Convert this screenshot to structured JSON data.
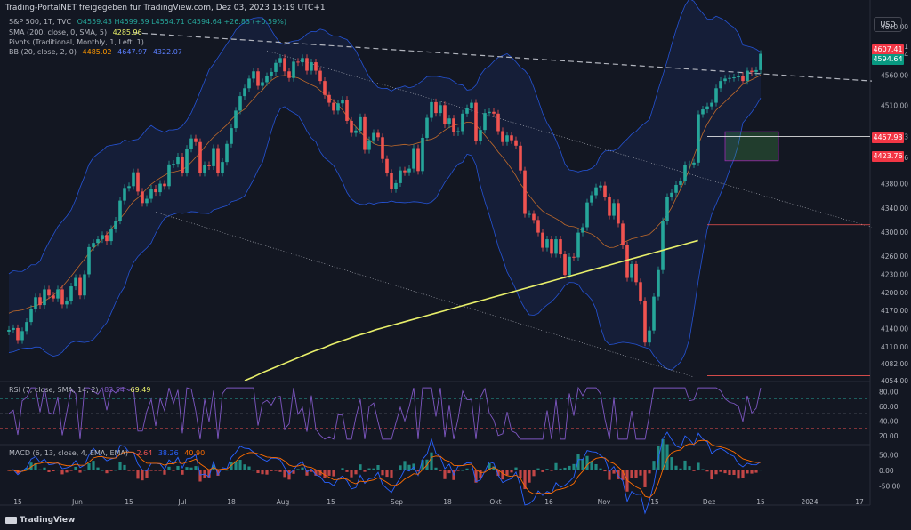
{
  "header": {
    "title": "Trading-PortalNET freigegeben für TradingView.com, Dez 03, 2023 15:19 UTC+1"
  },
  "legend": {
    "symbol": "S&P 500, 1T, TVC",
    "ohlc": "O4559.43  H4599.39  L4554.71  C4594.64  +26.83 (+0.59%)",
    "sma_label": "SMA (200, close, 0, SMA, 5)",
    "sma_value": "4285.96",
    "pivots_label": "Pivots (Traditional, Monthly, 1, Left, 1)",
    "bb_label": "BB (20, close, 2, 0)",
    "bb_basis": "4485.02",
    "bb_upper": "4647.97",
    "bb_lower": "4322.07",
    "rsi_label": "RSI (7, close, SMA, 14, 2)",
    "rsi_value": "83.54",
    "rsi_ma": "69.49",
    "macd_label": "MACD (6, 13, close, 4, EMA, EMA)",
    "macd_hist": "-2.64",
    "macd_line": "38.26",
    "macd_signal": "40.90"
  },
  "currency_button": "USD",
  "price_labels": {
    "upper_band": "4607.41",
    "last_price": "4594.64",
    "pivot_r": "4457.93",
    "pivot_s": "4423.76"
  },
  "branding": "TradingView",
  "colors": {
    "up": "#26a69a",
    "down": "#ef5350",
    "sma200": "#e8ef6a",
    "bb_band": "#2962ff",
    "bb_basis": "#c06a2a",
    "rsi": "#7e57c2",
    "macd_line": "#2962ff",
    "macd_signal": "#ff6d00"
  },
  "chart_data": {
    "type": "candlestick",
    "title": "S&P 500, 1T, TVC",
    "x_ticks": [
      "15",
      "Jun",
      "15",
      "Jul",
      "18",
      "Aug",
      "15",
      "Sep",
      "18",
      "Okt",
      "16",
      "Nov",
      "15",
      "Dez",
      "15",
      "2024",
      "17"
    ],
    "price_axis_ticks": [
      "4640.00",
      "4607.41",
      "4594.64",
      "4560.00",
      "4510.00",
      "4457.93",
      "4423.76",
      "4380.00",
      "4340.00",
      "4300.00",
      "4260.00",
      "4230.00",
      "4200.00",
      "4170.00",
      "4140.00",
      "4110.00",
      "4082.00",
      "4054.00"
    ],
    "ylim": [
      4054,
      4640
    ],
    "rsi_axis_ticks": [
      "80.00",
      "60.00",
      "40.00",
      "20.00"
    ],
    "rsi_levels": [
      70,
      50,
      30
    ],
    "macd_axis_ticks": [
      "50.00",
      "0.00",
      "-50.00"
    ],
    "close": [
      4138,
      4141,
      4121,
      4136,
      4151,
      4173,
      4192,
      4179,
      4205,
      4195,
      4190,
      4205,
      4180,
      4186,
      4210,
      4224,
      4195,
      4230,
      4275,
      4282,
      4288,
      4295,
      4285,
      4305,
      4319,
      4352,
      4373,
      4376,
      4399,
      4367,
      4348,
      4355,
      4372,
      4366,
      4380,
      4376,
      4412,
      4413,
      4425,
      4398,
      4438,
      4455,
      4449,
      4398,
      4411,
      4409,
      4439,
      4398,
      4416,
      4446,
      4472,
      4501,
      4525,
      4538,
      4554,
      4566,
      4542,
      4548,
      4558,
      4565,
      4580,
      4588,
      4566,
      4555,
      4582,
      4581,
      4588,
      4567,
      4581,
      4567,
      4550,
      4527,
      4514,
      4501,
      4513,
      4519,
      4484,
      4464,
      4468,
      4490,
      4436,
      4452,
      4464,
      4457,
      4421,
      4398,
      4371,
      4381,
      4402,
      4399,
      4405,
      4439,
      4401,
      4456,
      4489,
      4515,
      4497,
      4510,
      4478,
      4488,
      4465,
      4467,
      4496,
      4505,
      4514,
      4451,
      4469,
      4497,
      4499,
      4496,
      4467,
      4449,
      4460,
      4452,
      4443,
      4402,
      4330,
      4330,
      4320,
      4299,
      4274,
      4288,
      4264,
      4288,
      4263,
      4229,
      4259,
      4258,
      4299,
      4308,
      4349,
      4361,
      4374,
      4377,
      4358,
      4327,
      4348,
      4314,
      4278,
      4224,
      4247,
      4217,
      4186,
      4117,
      4137,
      4193,
      4237,
      4318,
      4358,
      4365,
      4378,
      4384,
      4411,
      4412,
      4415,
      4495,
      4503,
      4508,
      4514,
      4538,
      4550,
      4554,
      4555,
      4556,
      4559,
      4550,
      4567,
      4565,
      4568,
      4595
    ],
    "sma200": [
      4054,
      4060,
      4067,
      4073,
      4079,
      4085,
      4091,
      4097,
      4103,
      4108,
      4114,
      4119,
      4124,
      4129,
      4133,
      4138,
      4142,
      4146,
      4150,
      4154,
      4158,
      4162,
      4166,
      4170,
      4174,
      4178,
      4182,
      4186,
      4190,
      4194,
      4198,
      4202,
      4206,
      4210,
      4214,
      4218,
      4222,
      4226,
      4230,
      4234,
      4238,
      4242,
      4246,
      4250,
      4254,
      4258,
      4262,
      4266,
      4270,
      4274,
      4278,
      4282,
      4286
    ],
    "bb_upper": [
      4647.97
    ],
    "bb_basis": [
      4485.02
    ],
    "bb_lower": [
      4322.07
    ],
    "pivot_levels": [
      4457.93,
      4423.76
    ]
  }
}
